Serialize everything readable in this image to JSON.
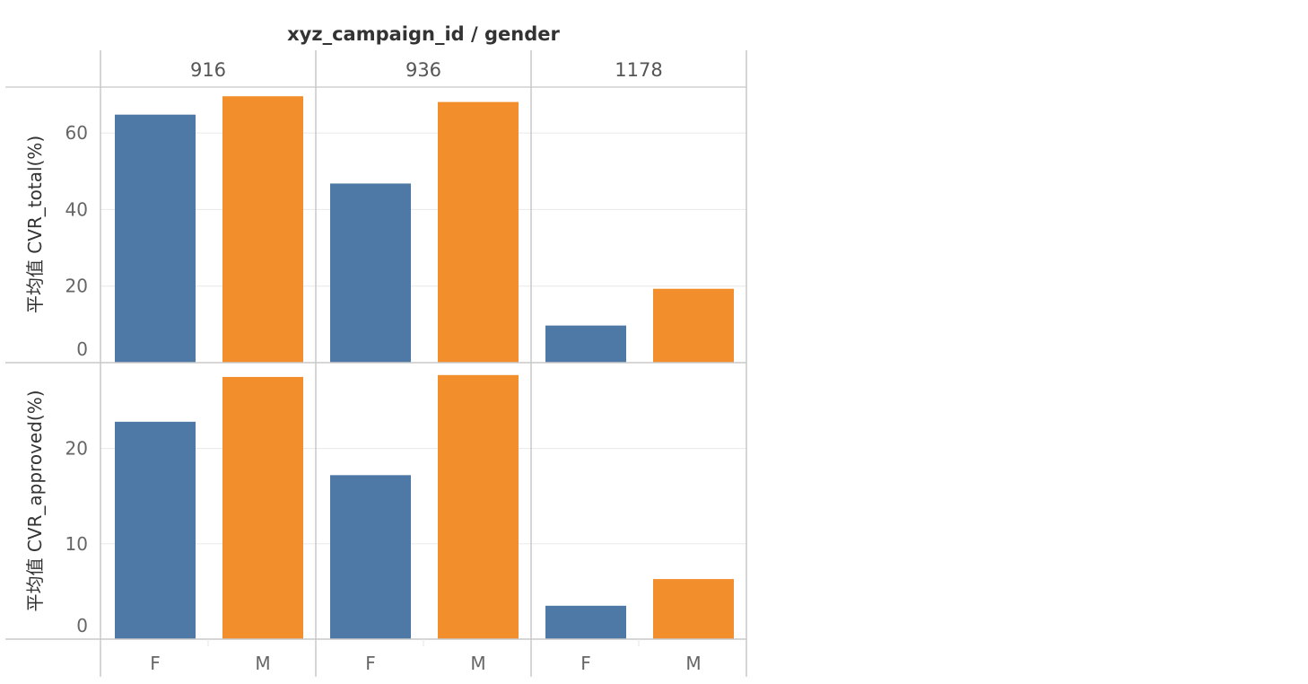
{
  "chart_data": {
    "type": "bar",
    "title": "xyz_campaign_id / gender",
    "columns": [
      "916",
      "936",
      "1178"
    ],
    "categories": [
      "F",
      "M"
    ],
    "colors": {
      "F": "#4e79a7",
      "M": "#f28e2b"
    },
    "grid": true,
    "rows": [
      {
        "ylabel": "平均值 CVR_total(%)",
        "ylim": [
          0,
          72
        ],
        "yticks": [
          0,
          20,
          40,
          60
        ],
        "values": [
          [
            64.8,
            69.6
          ],
          [
            46.8,
            68.1
          ],
          [
            9.7,
            19.3
          ]
        ]
      },
      {
        "ylabel": "平均值 CVR_approved(%)",
        "ylim": [
          0,
          29
        ],
        "yticks": [
          0,
          10,
          20
        ],
        "values": [
          [
            22.8,
            27.5
          ],
          [
            17.2,
            27.7
          ],
          [
            3.5,
            6.3
          ]
        ]
      }
    ]
  }
}
